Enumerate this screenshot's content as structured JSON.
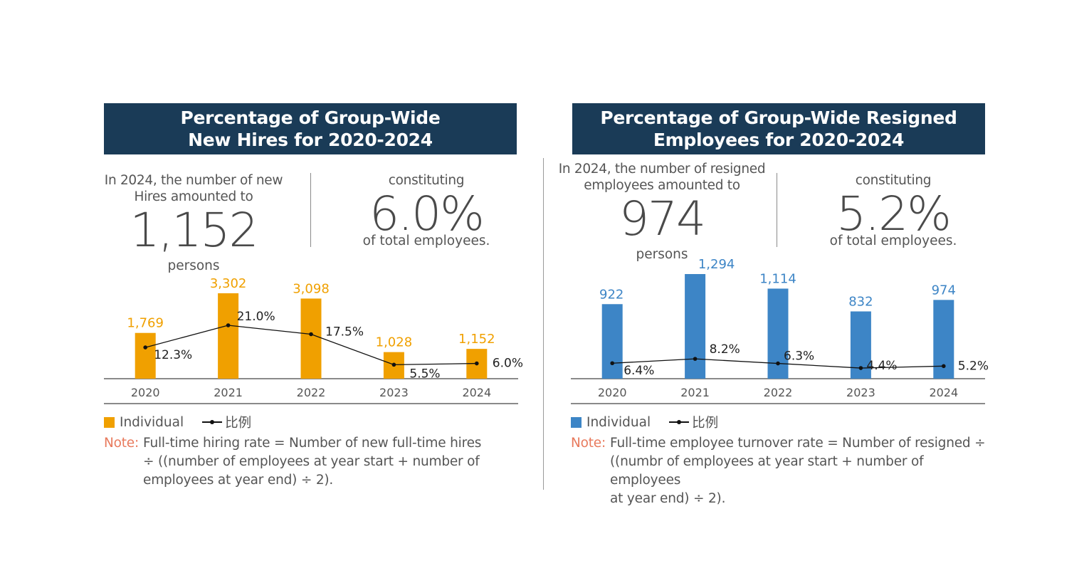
{
  "left": {
    "title": "Percentage of Group-Wide\nNew Hires for 2020-2024",
    "intro": "In 2024, the number of new\nHires amounted to",
    "big_number": "1,152",
    "unit": "persons",
    "constituting": "constituting",
    "percent": "6.0%",
    "of_total": "of total employees.",
    "legend_bar": "Individual",
    "legend_line": "比例",
    "note_label": "Note:",
    "note_text": "Full-time hiring rate = Number of new full-time hires\n÷ ((number of employees at year start + number of\nemployees at year end) ÷ 2).",
    "bar_color": "#f0a000",
    "label_color": "#f0a000"
  },
  "right": {
    "title": "Percentage of Group-Wide Resigned\nEmployees for 2020-2024",
    "intro": "In 2024, the number of resigned\nemployees amounted to",
    "big_number": "974",
    "unit": "persons",
    "constituting": "constituting",
    "percent": "5.2%",
    "of_total": "of total employees.",
    "legend_bar": "Individual",
    "legend_line": "比例",
    "note_label": "Note:",
    "note_text": "Full-time employee turnover rate = Number of resigned ÷\n((numbr of employees at year start + number of employees\nat year end) ÷ 2).",
    "bar_color": "#3d85c6",
    "label_color": "#3d85c6"
  },
  "chart_data": [
    {
      "type": "bar",
      "categories": [
        "2020",
        "2021",
        "2022",
        "2023",
        "2024"
      ],
      "series": [
        {
          "name": "Individual",
          "type": "bar",
          "values": [
            1769,
            3302,
            3098,
            1028,
            1152
          ],
          "labels": [
            "1,769",
            "3,302",
            "3,098",
            "1,028",
            "1,152"
          ]
        },
        {
          "name": "比例",
          "type": "line",
          "values": [
            12.3,
            21.0,
            17.5,
            5.5,
            6.0
          ],
          "labels": [
            "12.3%",
            "21.0%",
            "17.5%",
            "5.5%",
            "6.0%"
          ]
        }
      ],
      "legend": "bottom-left",
      "grid": false
    },
    {
      "type": "bar",
      "categories": [
        "2020",
        "2021",
        "2022",
        "2023",
        "2024"
      ],
      "series": [
        {
          "name": "Individual",
          "type": "bar",
          "values": [
            922,
            1294,
            1114,
            832,
            974
          ],
          "labels": [
            "922",
            "1,294",
            "1,114",
            "832",
            "974"
          ]
        },
        {
          "name": "比例",
          "type": "line",
          "values": [
            6.4,
            8.2,
            6.3,
            4.4,
            5.2
          ],
          "labels": [
            "6.4%",
            "8.2%",
            "6.3%",
            "4.4%",
            "5.2%"
          ]
        }
      ],
      "legend": "bottom-left",
      "grid": false
    }
  ]
}
